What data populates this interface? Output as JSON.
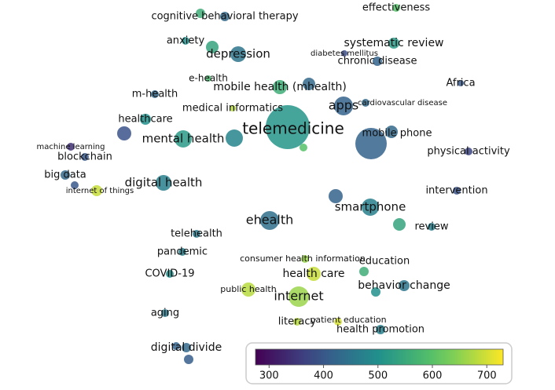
{
  "chart_data": {
    "type": "network",
    "nodes": [
      {
        "label": "cognitive behavioral therapy",
        "value": 430
      },
      {
        "label": null,
        "value": 560
      },
      {
        "label": "effectiveness",
        "value": 600
      },
      {
        "label": "anxiety",
        "value": 500
      },
      {
        "label": "depression",
        "value": 450
      },
      {
        "label": null,
        "value": 540
      },
      {
        "label": "systematic review",
        "value": 520
      },
      {
        "label": "diabetes mellitus",
        "value": 380
      },
      {
        "label": "chronic disease",
        "value": 420
      },
      {
        "label": "Africa",
        "value": 400
      },
      {
        "label": "e-health",
        "value": 580
      },
      {
        "label": "mobile health (mhealth)",
        "value": 560
      },
      {
        "label": null,
        "value": 430
      },
      {
        "label": "m-health",
        "value": 430
      },
      {
        "label": "medical informatics",
        "value": 680
      },
      {
        "label": "apps",
        "value": 420
      },
      {
        "label": "cardiovascular disease",
        "value": 430
      },
      {
        "label": "healthcare",
        "value": 500
      },
      {
        "label": "telemedicine",
        "value": 510
      },
      {
        "label": "mobile phone",
        "value": 430
      },
      {
        "label": null,
        "value": 420
      },
      {
        "label": "machine learning",
        "value": 340
      },
      {
        "label": "blockchain",
        "value": 400
      },
      {
        "label": "mental health",
        "value": 520
      },
      {
        "label": null,
        "value": 390
      },
      {
        "label": null,
        "value": 480
      },
      {
        "label": null,
        "value": 600
      },
      {
        "label": "physical activity",
        "value": 370
      },
      {
        "label": "big data",
        "value": 430
      },
      {
        "label": "internet of things",
        "value": 690
      },
      {
        "label": null,
        "value": 400
      },
      {
        "label": "digital health",
        "value": 470
      },
      {
        "label": "intervention",
        "value": 390
      },
      {
        "label": "smartphone",
        "value": 470
      },
      {
        "label": null,
        "value": 420
      },
      {
        "label": "ehealth",
        "value": 440
      },
      {
        "label": "review",
        "value": 470
      },
      {
        "label": null,
        "value": 540
      },
      {
        "label": "telehealth",
        "value": 460
      },
      {
        "label": "pandemic",
        "value": 470
      },
      {
        "label": "consumer health information",
        "value": 660
      },
      {
        "label": "education",
        "value": 560
      },
      {
        "label": "COVID-19",
        "value": 500
      },
      {
        "label": "health care",
        "value": 690
      },
      {
        "label": "behavior change",
        "value": 450
      },
      {
        "label": null,
        "value": 500
      },
      {
        "label": "public health",
        "value": 680
      },
      {
        "label": "internet",
        "value": 660
      },
      {
        "label": "aging",
        "value": 460
      },
      {
        "label": "literacy",
        "value": 680
      },
      {
        "label": "patient education",
        "value": 700
      },
      {
        "label": "health promotion",
        "value": 470
      },
      {
        "label": "digital divide",
        "value": 430
      },
      {
        "label": null,
        "value": 420
      },
      {
        "label": null,
        "value": 410
      }
    ],
    "colorbar": {
      "range": [
        275,
        730
      ],
      "ticks": [
        300,
        400,
        500,
        600,
        700
      ]
    }
  }
}
